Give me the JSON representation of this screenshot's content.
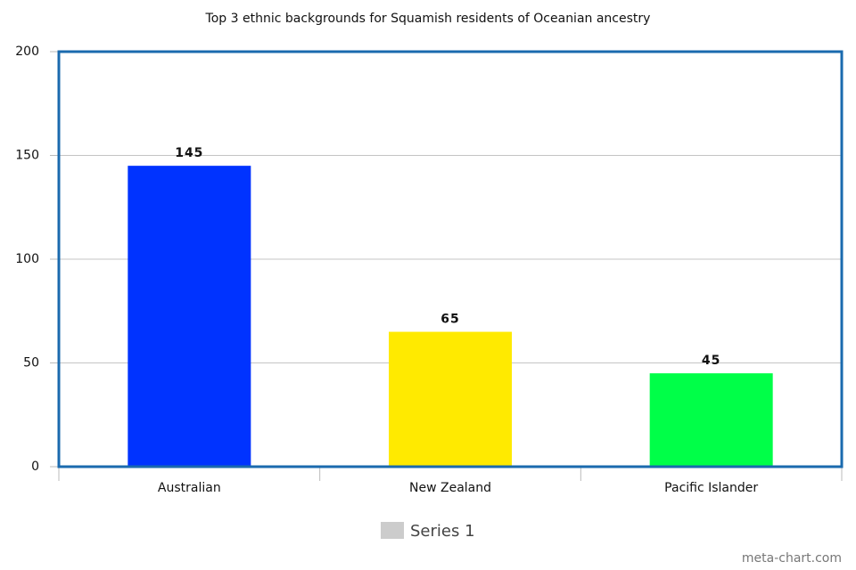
{
  "chart_data": {
    "type": "bar",
    "title": "Top 3 ethnic backgrounds for Squamish residents of Oceanian ancestry",
    "categories": [
      "Australian",
      "New Zealand",
      "Pacific Islander"
    ],
    "series": [
      {
        "name": "Series 1",
        "color": "#cccccc",
        "values": [
          145,
          65,
          45
        ]
      }
    ],
    "bar_colors": [
      "#0033ff",
      "#ffea00",
      "#00ff48"
    ],
    "ylim": [
      0,
      200
    ],
    "yticks": [
      0,
      50,
      100,
      150,
      200
    ],
    "grid": true,
    "legend": "bottom",
    "watermark": "meta-chart.com"
  }
}
